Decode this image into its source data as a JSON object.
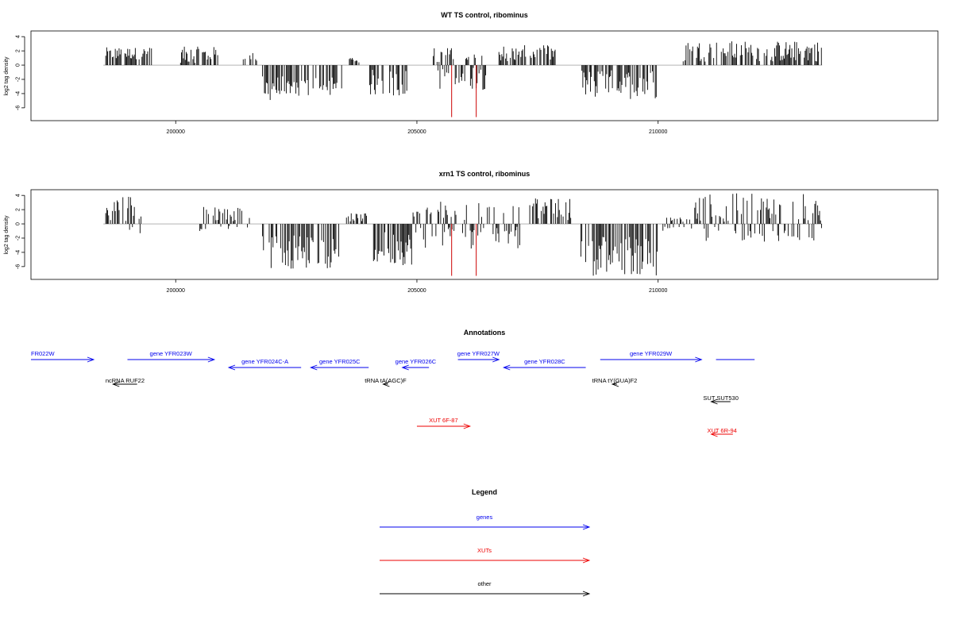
{
  "chart_data": [
    {
      "type": "bar",
      "title": "WT TS control, ribominus",
      "ylabel": "log2 tag density",
      "xlabel": "",
      "xlim": [
        197000,
        215800
      ],
      "ylim": [
        -7.8,
        4.8
      ],
      "yticks": [
        4,
        2,
        0,
        -2,
        -4,
        -6
      ],
      "xticks": [
        200000,
        205000,
        210000
      ],
      "xtick_labels": [
        "200000",
        "205000",
        "210000"
      ],
      "grid": false,
      "colors": {
        "bars": "#000000",
        "highlight": "#cc0000",
        "baseline": "#888888"
      },
      "data_range": [
        198500,
        213400
      ],
      "segments": [
        {
          "from": 198550,
          "to": 199500,
          "min": 0.8,
          "max": 2.5
        },
        {
          "from": 200100,
          "to": 200900,
          "min": 0.3,
          "max": 2.6
        },
        {
          "from": 201400,
          "to": 201700,
          "min": 0.3,
          "max": 1.8
        },
        {
          "from": 201800,
          "to": 203500,
          "min": -5.0,
          "max": -1.5
        },
        {
          "from": 203600,
          "to": 203800,
          "min": 0.3,
          "max": 1.0
        },
        {
          "from": 204000,
          "to": 204800,
          "min": -4.3,
          "max": -0.6
        },
        {
          "from": 205300,
          "to": 206500,
          "min": -3.5,
          "max": 2.6
        },
        {
          "from": 206700,
          "to": 207900,
          "min": 0.5,
          "max": 2.8
        },
        {
          "from": 208400,
          "to": 210000,
          "min": -4.8,
          "max": -0.6
        },
        {
          "from": 210500,
          "to": 213400,
          "min": 0.5,
          "max": 3.4
        }
      ],
      "highlights": [
        {
          "x": 205720,
          "y": -7.3
        },
        {
          "x": 206230,
          "y": -7.3
        }
      ]
    },
    {
      "type": "bar",
      "title": "xrn1 TS control, ribominus",
      "ylabel": "log2 tag density",
      "xlabel": "",
      "xlim": [
        197000,
        215800
      ],
      "ylim": [
        -7.8,
        4.8
      ],
      "yticks": [
        4,
        2,
        0,
        -2,
        -4,
        -6
      ],
      "xticks": [
        200000,
        205000,
        210000
      ],
      "xtick_labels": [
        "200000",
        "205000",
        "210000"
      ],
      "grid": false,
      "colors": {
        "bars": "#000000",
        "highlight": "#cc0000",
        "baseline": "#888888"
      },
      "data_range": [
        198500,
        213400
      ],
      "segments": [
        {
          "from": 198550,
          "to": 199300,
          "min": -1.5,
          "max": 4.3
        },
        {
          "from": 200500,
          "to": 201600,
          "min": -1.0,
          "max": 2.5
        },
        {
          "from": 201800,
          "to": 203400,
          "min": -6.3,
          "max": -1.5
        },
        {
          "from": 203500,
          "to": 204000,
          "min": 0.3,
          "max": 1.5
        },
        {
          "from": 204100,
          "to": 204900,
          "min": -5.8,
          "max": -1.0
        },
        {
          "from": 204900,
          "to": 207200,
          "min": -3.5,
          "max": 3.2
        },
        {
          "from": 207300,
          "to": 208200,
          "min": 0.4,
          "max": 3.6
        },
        {
          "from": 208400,
          "to": 210000,
          "min": -7.3,
          "max": -1.5
        },
        {
          "from": 210100,
          "to": 210700,
          "min": -1.0,
          "max": 1.0
        },
        {
          "from": 210700,
          "to": 213400,
          "min": -2.5,
          "max": 4.3
        }
      ],
      "highlights": [
        {
          "x": 205720,
          "y": -7.3
        },
        {
          "x": 206230,
          "y": -7.3
        }
      ]
    }
  ],
  "annotations": {
    "title": "Annotations",
    "items": [
      {
        "label": "FR022W",
        "color": "#0000ee",
        "row": 0,
        "from": 197000,
        "to": 198300,
        "dir": "right"
      },
      {
        "label": "gene YFR023W",
        "color": "#0000ee",
        "row": 0,
        "from": 199000,
        "to": 200800,
        "dir": "right"
      },
      {
        "label": "gene YFR024C-A",
        "color": "#0000ee",
        "row": 1,
        "from": 201100,
        "to": 202600,
        "dir": "left"
      },
      {
        "label": "gene YFR025C",
        "color": "#0000ee",
        "row": 1,
        "from": 202800,
        "to": 204000,
        "dir": "left"
      },
      {
        "label": "gene YFR026C",
        "color": "#0000ee",
        "row": 1,
        "from": 204700,
        "to": 205250,
        "dir": "left"
      },
      {
        "label": "gene YFR027W",
        "color": "#0000ee",
        "row": 0,
        "from": 205850,
        "to": 206700,
        "dir": "right"
      },
      {
        "label": "gene YFR028C",
        "color": "#0000ee",
        "row": 1,
        "from": 206800,
        "to": 208500,
        "dir": "left"
      },
      {
        "label": "gene YFR029W",
        "color": "#0000ee",
        "row": 0,
        "from": 208800,
        "to": 210900,
        "dir": "right"
      },
      {
        "label": "",
        "color": "#0000ee",
        "row": 0,
        "from": 211200,
        "to": 212000,
        "dir": "none"
      },
      {
        "label": "ncRNA RUF22",
        "color": "#000000",
        "row": 2,
        "from": 198700,
        "to": 199200,
        "dir": "left"
      },
      {
        "label": "tRNA tA(AGC)F",
        "color": "#000000",
        "row": 2,
        "from": 204300,
        "to": 204400,
        "dir": "left"
      },
      {
        "label": "tRNA tY(GUA)F2",
        "color": "#000000",
        "row": 2,
        "from": 209050,
        "to": 209150,
        "dir": "left"
      },
      {
        "label": "SUT SUT530",
        "color": "#000000",
        "row": 3,
        "from": 211100,
        "to": 211500,
        "dir": "left"
      },
      {
        "label": "XUT 6F-87",
        "color": "#ee0000",
        "row": 4,
        "from": 205000,
        "to": 206100,
        "dir": "right"
      },
      {
        "label": "XUT 6R-94",
        "color": "#ee0000",
        "row": 5,
        "from": 211100,
        "to": 211550,
        "dir": "left"
      }
    ]
  },
  "legend": {
    "title": "Legend",
    "items": [
      {
        "label": "genes",
        "color": "#0000ee"
      },
      {
        "label": "XUTs",
        "color": "#ee0000"
      },
      {
        "label": "other",
        "color": "#000000"
      }
    ]
  }
}
